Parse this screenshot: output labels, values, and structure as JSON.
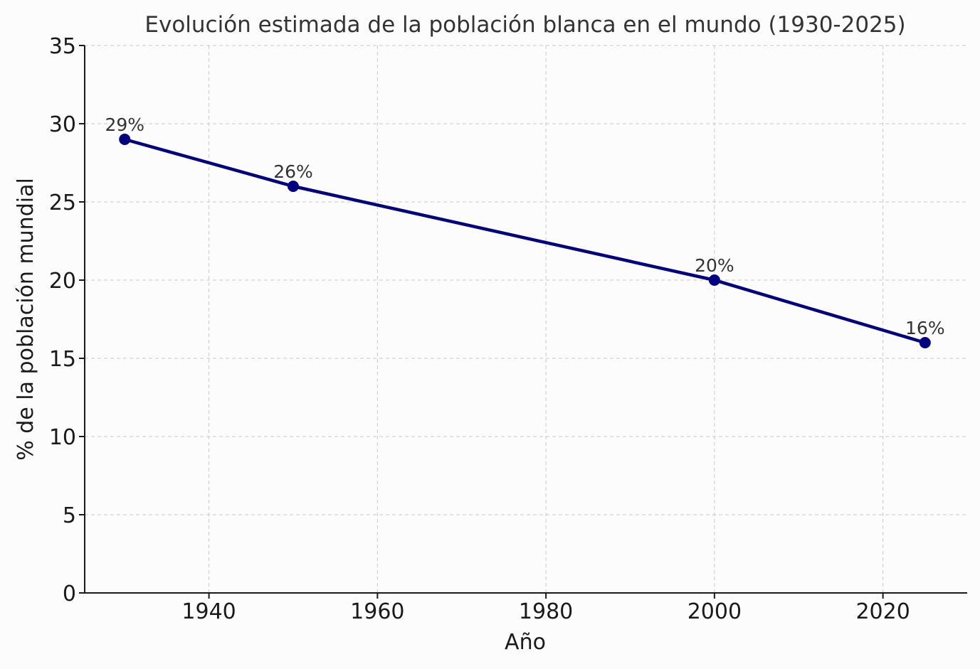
{
  "chart_data": {
    "type": "line",
    "title": "Evolución estimada de la población blanca en el mundo (1930-2025)",
    "xlabel": "Año",
    "ylabel": "% de la población mundial",
    "xlim": [
      1925.25,
      1929.75
    ],
    "ylim": [
      0,
      35
    ],
    "xticks": [
      1940,
      1960,
      1980,
      2000,
      2020
    ],
    "yticks": [
      0,
      5,
      10,
      15,
      20,
      25,
      30,
      35
    ],
    "grid": true,
    "series": [
      {
        "x": [
          1930,
          1950,
          2000,
          2025
        ],
        "y": [
          29,
          26,
          20,
          16
        ],
        "labels": [
          "29%",
          "26%",
          "20%",
          "16%"
        ],
        "color": "#000080"
      }
    ]
  }
}
